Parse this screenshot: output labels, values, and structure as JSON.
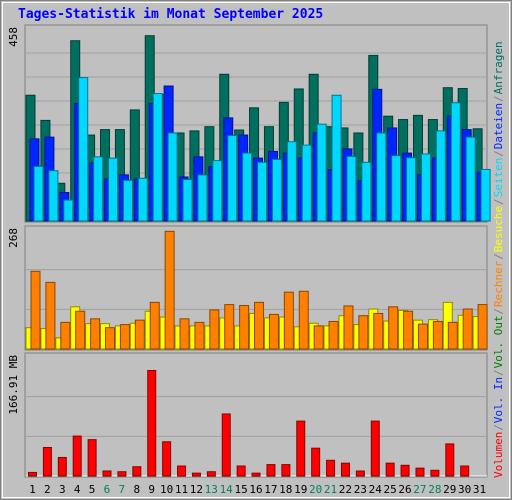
{
  "chart_data": {
    "type": "bar",
    "title": "Tages-Statistik im Monat September 2025",
    "categories": [
      "1",
      "2",
      "3",
      "4",
      "5",
      "6",
      "7",
      "8",
      "9",
      "10",
      "11",
      "12",
      "13",
      "14",
      "15",
      "16",
      "17",
      "18",
      "19",
      "20",
      "21",
      "22",
      "23",
      "24",
      "25",
      "26",
      "27",
      "28",
      "29",
      "30",
      "31"
    ],
    "weekend_days": [
      "6",
      "7",
      "13",
      "14",
      "20",
      "21",
      "27",
      "28"
    ],
    "panels": [
      {
        "id": "top",
        "ymax_label": "458",
        "ymax": 458,
        "series": [
          {
            "name": "Anfragen",
            "color": "#006f5f",
            "values": [
              300,
              240,
              90,
              430,
              205,
              218,
              218,
              265,
              442,
              302,
              210,
              215,
              225,
              350,
              217,
              270,
              225,
              283,
              315,
              350,
              225,
              222,
              210,
              395,
              250,
              242,
              252,
              242,
              318,
              316,
              220
            ]
          },
          {
            "name": "Dateien",
            "color": "#0025ff",
            "values": [
              196,
              200,
              68,
              280,
              138,
              100,
              110,
              100,
              280,
              322,
              105,
              153,
              130,
              246,
              205,
              150,
              166,
              162,
              150,
              210,
              122,
              172,
              96,
              314,
              222,
              162,
              110,
              150,
              250,
              218,
              116
            ]
          },
          {
            "name": "Seiten",
            "color": "#00d8ff",
            "values": [
              130,
              120,
              50,
              342,
              153,
              150,
              97,
              102,
              304,
              210,
              99,
              110,
              144,
              204,
              162,
              140,
              147,
              189,
              181,
              231,
              300,
              154,
              140,
              210,
              156,
              151,
              160,
              215,
              282,
              200,
              123
            ]
          }
        ]
      },
      {
        "id": "middle",
        "ymax_label": "268",
        "ymax": 268,
        "series": [
          {
            "name": "Besuche",
            "color": "#ffff00",
            "values": [
              48,
              46,
              25,
              95,
              57,
              57,
              52,
              58,
              85,
              72,
              52,
              52,
              52,
              70,
              52,
              80,
              70,
              72,
              50,
              58,
              52,
              75,
              55,
              90,
              63,
              87,
              65,
              66,
              105,
              76,
              73
            ]
          },
          {
            "name": "Rechner",
            "color": "#ff8000",
            "values": [
              175,
              150,
              60,
              85,
              68,
              48,
              55,
              65,
              105,
              265,
              68,
              60,
              88,
              100,
              98,
              105,
              78,
              128,
              130,
              52,
              62,
              97,
              75,
              80,
              95,
              85,
              56,
              62,
              60,
              90,
              100
            ]
          }
        ]
      },
      {
        "id": "bottom",
        "ymax_label": "166.91 MB",
        "ymax": 166.91,
        "series": [
          {
            "name": "Volumen",
            "color": "#ff0000",
            "values": [
              5,
              40,
              26,
              56,
              51,
              7,
              6,
              13,
              148,
              48,
              14,
              4,
              6,
              87,
              14,
              4,
              16,
              16,
              77,
              39,
              22,
              18,
              7,
              77,
              18,
              15,
              11,
              8,
              45,
              14,
              0
            ]
          }
        ]
      }
    ],
    "right_legend": [
      {
        "text": "Anfragen",
        "color": "#006f5f",
        "panel": "top"
      },
      {
        "text": "/",
        "color": "#808080",
        "panel": "top"
      },
      {
        "text": "Dateien",
        "color": "#0025ff",
        "panel": "top"
      },
      {
        "text": "/",
        "color": "#808080",
        "panel": "top"
      },
      {
        "text": "Seiten",
        "color": "#00d8ff",
        "panel": "top"
      },
      {
        "text": "/",
        "color": "#808080",
        "panel": "top"
      },
      {
        "text": "Besuche",
        "color": "#ffff00",
        "panel": "middle"
      },
      {
        "text": "/",
        "color": "#808080",
        "panel": "middle"
      },
      {
        "text": "Rechner",
        "color": "#ff8000",
        "panel": "middle"
      },
      {
        "text": "/",
        "color": "#808080",
        "panel": "middle"
      },
      {
        "text": "Vol. Out",
        "color": "#008000",
        "panel": "bottom"
      },
      {
        "text": "/",
        "color": "#808080",
        "panel": "bottom"
      },
      {
        "text": "Vol. In",
        "color": "#0025ff",
        "panel": "bottom"
      },
      {
        "text": "/",
        "color": "#808080",
        "panel": "bottom"
      },
      {
        "text": "Volumen",
        "color": "#ff0000",
        "panel": "bottom"
      }
    ],
    "grid": true
  }
}
